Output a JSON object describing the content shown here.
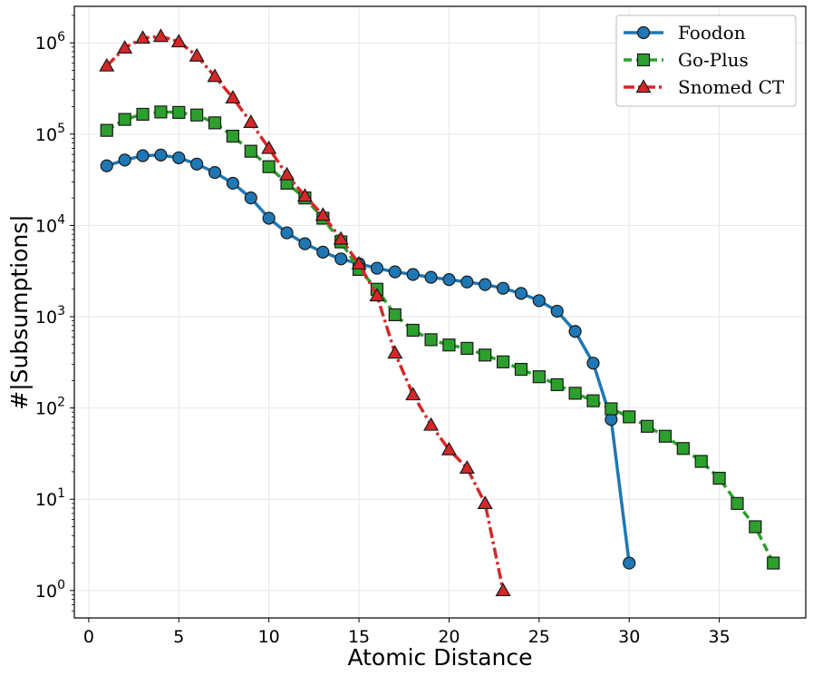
{
  "chart_data": {
    "type": "line",
    "title": "",
    "xlabel": "Atomic Distance",
    "ylabel": "#|Subsumptions|",
    "yscale": "log",
    "xlim": [
      -0.8,
      39.8
    ],
    "ylim_log10": [
      -0.3,
      6.4
    ],
    "xticks": [
      0,
      5,
      10,
      15,
      20,
      25,
      30,
      35
    ],
    "yticks_exponent": [
      0,
      1,
      2,
      3,
      4,
      5,
      6
    ],
    "grid": true,
    "legend_position": "top-right",
    "series": [
      {
        "name": "Foodon",
        "color": "#1f77b4",
        "marker": "circle",
        "linestyle": "solid",
        "x": [
          1,
          2,
          3,
          4,
          5,
          6,
          7,
          8,
          9,
          10,
          11,
          12,
          13,
          14,
          15,
          16,
          17,
          18,
          19,
          20,
          21,
          22,
          23,
          24,
          25,
          26,
          27,
          28,
          29,
          30
        ],
        "values": [
          45000,
          52000,
          58000,
          59000,
          55000,
          47000,
          38000,
          29000,
          20000,
          12000,
          8300,
          6300,
          5100,
          4300,
          3800,
          3400,
          3100,
          2900,
          2700,
          2550,
          2400,
          2250,
          2050,
          1800,
          1500,
          1150,
          690,
          310,
          75,
          2
        ]
      },
      {
        "name": "Go-Plus",
        "color": "#2ca02c",
        "marker": "square",
        "linestyle": "dashed",
        "x": [
          1,
          2,
          3,
          4,
          5,
          6,
          7,
          8,
          9,
          10,
          11,
          12,
          13,
          14,
          15,
          16,
          17,
          18,
          19,
          20,
          21,
          22,
          23,
          24,
          25,
          26,
          27,
          28,
          29,
          30,
          31,
          32,
          33,
          34,
          35,
          36,
          37,
          38
        ],
        "values": [
          110000,
          145000,
          165000,
          175000,
          173000,
          162000,
          133000,
          95000,
          65000,
          44000,
          29000,
          20000,
          12000,
          6600,
          3300,
          2000,
          1050,
          710,
          560,
          490,
          450,
          380,
          320,
          265,
          220,
          180,
          145,
          120,
          98,
          80,
          63,
          49,
          36,
          26,
          17,
          9,
          5,
          2
        ]
      },
      {
        "name": "Snomed CT",
        "color": "#d62728",
        "marker": "triangle",
        "linestyle": "dashdot",
        "x": [
          1,
          2,
          3,
          4,
          5,
          6,
          7,
          8,
          9,
          10,
          11,
          12,
          13,
          14,
          15,
          16,
          17,
          18,
          19,
          20,
          21,
          22,
          23
        ],
        "values": [
          560000,
          880000,
          1130000,
          1180000,
          1030000,
          720000,
          430000,
          250000,
          135000,
          70000,
          36000,
          21000,
          13000,
          7100,
          3800,
          1700,
          400,
          140,
          65,
          35,
          22,
          9,
          1
        ]
      }
    ]
  }
}
